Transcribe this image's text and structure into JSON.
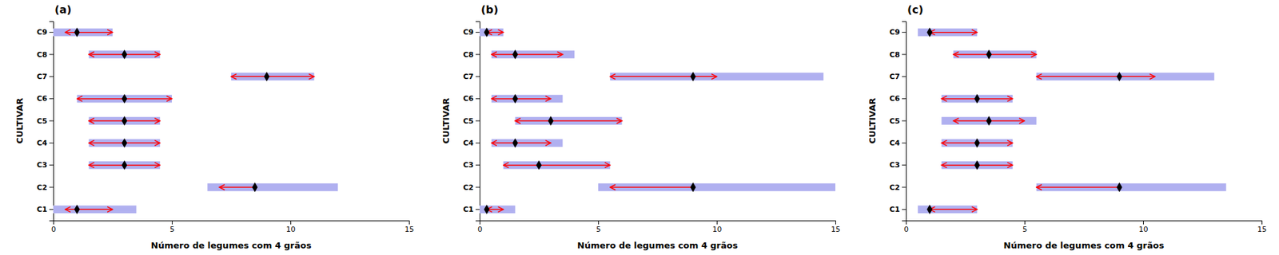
{
  "chart_data": [
    {
      "type": "range",
      "title": "(a)",
      "xlabel": "Número de legumes com 4 grãos",
      "ylabel": "CULTIVAR",
      "orientation": "horizontal",
      "categories": [
        "C9",
        "C8",
        "C7",
        "C6",
        "C5",
        "C4",
        "C3",
        "C2",
        "C1"
      ],
      "xlim": [
        0,
        15
      ],
      "xticks": [
        0,
        5,
        10,
        15
      ],
      "series": [
        {
          "type": "bar",
          "color": "#b0b0f0",
          "low": [
            0.0,
            1.5,
            7.5,
            1.0,
            1.5,
            1.5,
            1.5,
            6.5,
            0.0
          ],
          "high": [
            2.5,
            4.5,
            11.0,
            5.0,
            4.5,
            4.5,
            4.5,
            12.0,
            3.5
          ]
        },
        {
          "type": "arrow",
          "color": "red",
          "low": [
            0.5,
            1.5,
            7.5,
            1.0,
            1.5,
            1.5,
            1.5,
            7.0,
            0.5
          ],
          "high": [
            2.5,
            4.5,
            11.0,
            5.0,
            4.5,
            4.5,
            4.5,
            8.5,
            2.5
          ],
          "arrow_right": [
            true,
            true,
            true,
            true,
            true,
            true,
            true,
            false,
            true
          ]
        },
        {
          "type": "scatter",
          "color": "black",
          "marker": "diamond",
          "values": [
            1.0,
            3.0,
            9.0,
            3.0,
            3.0,
            3.0,
            3.0,
            8.5,
            1.0
          ]
        }
      ]
    },
    {
      "type": "range",
      "title": "(b)",
      "xlabel": "Número de legumes com 4 grãos",
      "ylabel": "CULTIVAR",
      "orientation": "horizontal",
      "categories": [
        "C9",
        "C8",
        "C7",
        "C6",
        "C5",
        "C4",
        "C3",
        "C2",
        "C1"
      ],
      "xlim": [
        0,
        15
      ],
      "xticks": [
        0,
        5,
        10,
        15
      ],
      "series": [
        {
          "type": "bar",
          "color": "#b0b0f0",
          "low": [
            0.0,
            0.5,
            5.5,
            0.5,
            1.5,
            0.5,
            1.0,
            5.0,
            0.0
          ],
          "high": [
            1.0,
            4.0,
            14.5,
            3.5,
            6.0,
            3.5,
            5.5,
            15.0,
            1.5
          ]
        },
        {
          "type": "arrow",
          "color": "red",
          "low": [
            0.3,
            0.5,
            5.5,
            0.5,
            1.5,
            0.5,
            1.0,
            5.5,
            0.3
          ],
          "high": [
            1.0,
            3.5,
            10.0,
            3.0,
            6.0,
            3.0,
            5.5,
            9.0,
            1.0
          ],
          "arrow_right": [
            true,
            true,
            true,
            true,
            true,
            true,
            true,
            false,
            true
          ]
        },
        {
          "type": "scatter",
          "color": "black",
          "marker": "diamond",
          "values": [
            0.3,
            1.5,
            9.0,
            1.5,
            3.0,
            1.5,
            2.5,
            9.0,
            0.3
          ]
        }
      ]
    },
    {
      "type": "range",
      "title": "(c)",
      "xlabel": "Número de legumes com 4 grãos",
      "ylabel": "CULTIVAR",
      "orientation": "horizontal",
      "categories": [
        "C9",
        "C8",
        "C7",
        "C6",
        "C5",
        "C4",
        "C3",
        "C2",
        "C1"
      ],
      "xlim": [
        0,
        15
      ],
      "xticks": [
        0,
        5,
        10,
        15
      ],
      "series": [
        {
          "type": "bar",
          "color": "#b0b0f0",
          "low": [
            0.5,
            2.0,
            5.5,
            1.5,
            1.5,
            1.5,
            1.5,
            5.5,
            0.5
          ],
          "high": [
            3.0,
            5.5,
            13.0,
            4.5,
            5.5,
            4.5,
            4.5,
            13.5,
            3.0
          ]
        },
        {
          "type": "arrow",
          "color": "red",
          "low": [
            1.0,
            2.0,
            5.5,
            1.5,
            2.0,
            1.5,
            1.5,
            5.5,
            1.0
          ],
          "high": [
            3.0,
            5.5,
            10.5,
            4.5,
            5.0,
            4.5,
            4.5,
            9.0,
            3.0
          ],
          "arrow_right": [
            true,
            true,
            true,
            true,
            true,
            true,
            true,
            false,
            true
          ]
        },
        {
          "type": "scatter",
          "color": "black",
          "marker": "diamond",
          "values": [
            1.0,
            3.5,
            9.0,
            3.0,
            3.5,
            3.0,
            3.0,
            9.0,
            1.0
          ]
        }
      ]
    }
  ]
}
